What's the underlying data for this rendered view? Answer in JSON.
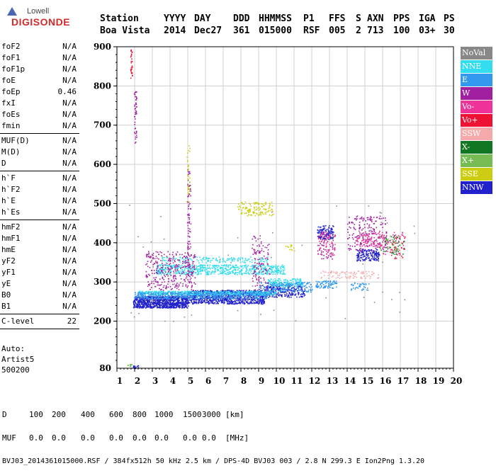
{
  "logo": {
    "line1": "Lowell",
    "line2": "DIGISONDE"
  },
  "header": {
    "columns": [
      "Station",
      "YYYY",
      "DAY",
      "DDD",
      "HHMMSS",
      "P1",
      "FFS",
      "S",
      "AXN",
      "PPS",
      "IGA",
      "PS"
    ],
    "values": [
      "Boa Vista",
      "2014",
      "Dec27",
      "361",
      "015000",
      "RSF",
      "005",
      "2",
      "713",
      "100",
      "03+",
      "30"
    ]
  },
  "params": {
    "group1": [
      {
        "name": "foF2",
        "value": "N/A"
      },
      {
        "name": "foF1",
        "value": "N/A"
      },
      {
        "name": "foF1p",
        "value": "N/A"
      },
      {
        "name": "foE",
        "value": "N/A"
      },
      {
        "name": "foEp",
        "value": "0.46"
      },
      {
        "name": "fxI",
        "value": "N/A"
      },
      {
        "name": "foEs",
        "value": "N/A"
      },
      {
        "name": "fmin",
        "value": "N/A"
      }
    ],
    "group2": [
      {
        "name": "MUF(D)",
        "value": "N/A"
      },
      {
        "name": "M(D)",
        "value": "N/A"
      },
      {
        "name": "D",
        "value": "N/A"
      }
    ],
    "group3": [
      {
        "name": "h`F",
        "value": "N/A"
      },
      {
        "name": "h`F2",
        "value": "N/A"
      },
      {
        "name": "h`E",
        "value": "N/A"
      },
      {
        "name": "h`Es",
        "value": "N/A"
      }
    ],
    "group4": [
      {
        "name": "hmF2",
        "value": "N/A"
      },
      {
        "name": "hmF1",
        "value": "N/A"
      },
      {
        "name": "hmE",
        "value": "N/A"
      },
      {
        "name": "yF2",
        "value": "N/A"
      },
      {
        "name": "yF1",
        "value": "N/A"
      },
      {
        "name": "yE",
        "value": "N/A"
      },
      {
        "name": "B0",
        "value": "N/A"
      },
      {
        "name": "B1",
        "value": "N/A"
      }
    ],
    "group5": [
      {
        "name": "C-level",
        "value": "22"
      }
    ]
  },
  "auto": {
    "line1": "Auto:",
    "line2": "Artist5",
    "line3": "500200"
  },
  "legend": [
    {
      "label": "NoVal",
      "color": "#888888"
    },
    {
      "label": "NNE",
      "color": "#33ddee"
    },
    {
      "label": "E",
      "color": "#3399ee"
    },
    {
      "label": "W",
      "color": "#a020a0"
    },
    {
      "label": "Vo-",
      "color": "#ee3399"
    },
    {
      "label": "Vo+",
      "color": "#ee1133"
    },
    {
      "label": "SSW",
      "color": "#f4aaaa"
    },
    {
      "label": "X-",
      "color": "#117722"
    },
    {
      "label": "X+",
      "color": "#77bb55"
    },
    {
      "label": "SSE",
      "color": "#cccc11"
    },
    {
      "label": "NNW",
      "color": "#2222cc"
    }
  ],
  "footer": {
    "d_label": "D",
    "d_values": [
      "100",
      "200",
      "400",
      "600",
      "800",
      "1000",
      "1500",
      "3000"
    ],
    "d_unit": "[km]",
    "muf_label": "MUF",
    "muf_values": [
      "0.0",
      "0.0",
      "0.0",
      "0.0",
      "0.0",
      "0.0",
      "0.0",
      "0.0"
    ],
    "muf_unit": "[MHz]",
    "info": "BVJ03_2014361015000.RSF / 384fx512h 50 kHz 2.5 km / DPS-4D BVJ03 003 / 2.8 N 299.3 E Ion2Png 1.3.20"
  },
  "chart_data": {
    "type": "scatter",
    "title": "",
    "xlabel": "",
    "ylabel": "",
    "xlim": [
      1,
      20
    ],
    "ylim": [
      80,
      900
    ],
    "xticks": [
      1,
      2,
      3,
      4,
      5,
      6,
      7,
      8,
      9,
      10,
      11,
      12,
      13,
      14,
      15,
      16,
      17,
      18,
      19,
      20
    ],
    "yticks": [
      200,
      300,
      400,
      500,
      600,
      700,
      800,
      900
    ],
    "ytick_labels": [
      "200",
      "300",
      "400",
      "500",
      "600",
      "700",
      "800",
      "900"
    ],
    "ytick_bottom_label": "80",
    "grid": true,
    "series": [
      {
        "name": "NNW",
        "color": "#2222cc",
        "blobs": [
          {
            "x0": 1.9,
            "x1": 5.0,
            "y0": 235,
            "y1": 265,
            "n": 900
          },
          {
            "x0": 5.0,
            "x1": 9.3,
            "y0": 245,
            "y1": 280,
            "n": 900
          },
          {
            "x0": 9.3,
            "x1": 11.6,
            "y0": 262,
            "y1": 292,
            "n": 250
          },
          {
            "x0": 12.3,
            "x1": 13.2,
            "y0": 410,
            "y1": 445,
            "n": 120
          },
          {
            "x0": 14.5,
            "x1": 15.8,
            "y0": 355,
            "y1": 385,
            "n": 160
          },
          {
            "x0": 1.9,
            "x1": 2.2,
            "y0": 80,
            "y1": 88,
            "n": 15
          }
        ]
      },
      {
        "name": "NNE",
        "color": "#33ddee",
        "blobs": [
          {
            "x0": 3.2,
            "x1": 10.5,
            "y0": 320,
            "y1": 345,
            "n": 650
          },
          {
            "x0": 2.2,
            "x1": 10.0,
            "y0": 268,
            "y1": 278,
            "n": 500
          },
          {
            "x0": 9.5,
            "x1": 11.5,
            "y0": 290,
            "y1": 310,
            "n": 150
          },
          {
            "x0": 3.5,
            "x1": 9.5,
            "y0": 350,
            "y1": 365,
            "n": 150
          }
        ]
      },
      {
        "name": "E",
        "color": "#3399ee",
        "blobs": [
          {
            "x0": 2.0,
            "x1": 9.5,
            "y0": 258,
            "y1": 275,
            "n": 500
          },
          {
            "x0": 9.0,
            "x1": 12.0,
            "y0": 275,
            "y1": 300,
            "n": 180
          },
          {
            "x0": 12.2,
            "x1": 13.4,
            "y0": 285,
            "y1": 305,
            "n": 80
          },
          {
            "x0": 14.2,
            "x1": 15.2,
            "y0": 280,
            "y1": 300,
            "n": 40
          }
        ]
      },
      {
        "name": "W",
        "color": "#a020a0",
        "blobs": [
          {
            "x0": 2.6,
            "x1": 5.4,
            "y0": 280,
            "y1": 380,
            "n": 320
          },
          {
            "x0": 8.6,
            "x1": 9.6,
            "y0": 280,
            "y1": 420,
            "n": 120
          },
          {
            "x0": 14.0,
            "x1": 16.2,
            "y0": 380,
            "y1": 470,
            "n": 200
          },
          {
            "x0": 1.95,
            "x1": 2.1,
            "y0": 650,
            "y1": 790,
            "n": 50
          },
          {
            "x0": 4.95,
            "x1": 5.15,
            "y0": 300,
            "y1": 600,
            "n": 90
          },
          {
            "x0": 12.3,
            "x1": 13.3,
            "y0": 360,
            "y1": 420,
            "n": 60
          }
        ]
      },
      {
        "name": "Vo-",
        "color": "#ee3399",
        "blobs": [
          {
            "x0": 12.3,
            "x1": 13.3,
            "y0": 370,
            "y1": 430,
            "n": 60
          },
          {
            "x0": 14.5,
            "x1": 16.0,
            "y0": 390,
            "y1": 430,
            "n": 90
          },
          {
            "x0": 16.0,
            "x1": 17.2,
            "y0": 370,
            "y1": 430,
            "n": 60
          }
        ]
      },
      {
        "name": "Vo+",
        "color": "#ee1133",
        "blobs": [
          {
            "x0": 1.75,
            "x1": 1.85,
            "y0": 820,
            "y1": 895,
            "n": 30
          },
          {
            "x0": 16.4,
            "x1": 17.3,
            "y0": 360,
            "y1": 420,
            "n": 30
          }
        ]
      },
      {
        "name": "SSW",
        "color": "#f4aaaa",
        "blobs": [
          {
            "x0": 12.5,
            "x1": 15.8,
            "y0": 310,
            "y1": 330,
            "n": 90
          }
        ]
      },
      {
        "name": "X-",
        "color": "#117722",
        "blobs": [
          {
            "x0": 16.0,
            "x1": 17.2,
            "y0": 370,
            "y1": 420,
            "n": 40
          }
        ]
      },
      {
        "name": "X+",
        "color": "#77bb55",
        "blobs": [
          {
            "x0": 15.8,
            "x1": 17.0,
            "y0": 380,
            "y1": 420,
            "n": 30
          },
          {
            "x0": 1.5,
            "x1": 1.9,
            "y0": 85,
            "y1": 92,
            "n": 8
          }
        ]
      },
      {
        "name": "SSE",
        "color": "#cccc11",
        "blobs": [
          {
            "x0": 7.8,
            "x1": 9.8,
            "y0": 470,
            "y1": 505,
            "n": 120
          },
          {
            "x0": 4.9,
            "x1": 5.1,
            "y0": 480,
            "y1": 650,
            "n": 30
          },
          {
            "x0": 10.5,
            "x1": 11.0,
            "y0": 380,
            "y1": 400,
            "n": 12
          }
        ]
      },
      {
        "name": "NoVal",
        "color": "#888888",
        "blobs": [
          {
            "x0": 1.5,
            "x1": 18.0,
            "y0": 200,
            "y1": 500,
            "n": 60
          }
        ]
      }
    ]
  }
}
